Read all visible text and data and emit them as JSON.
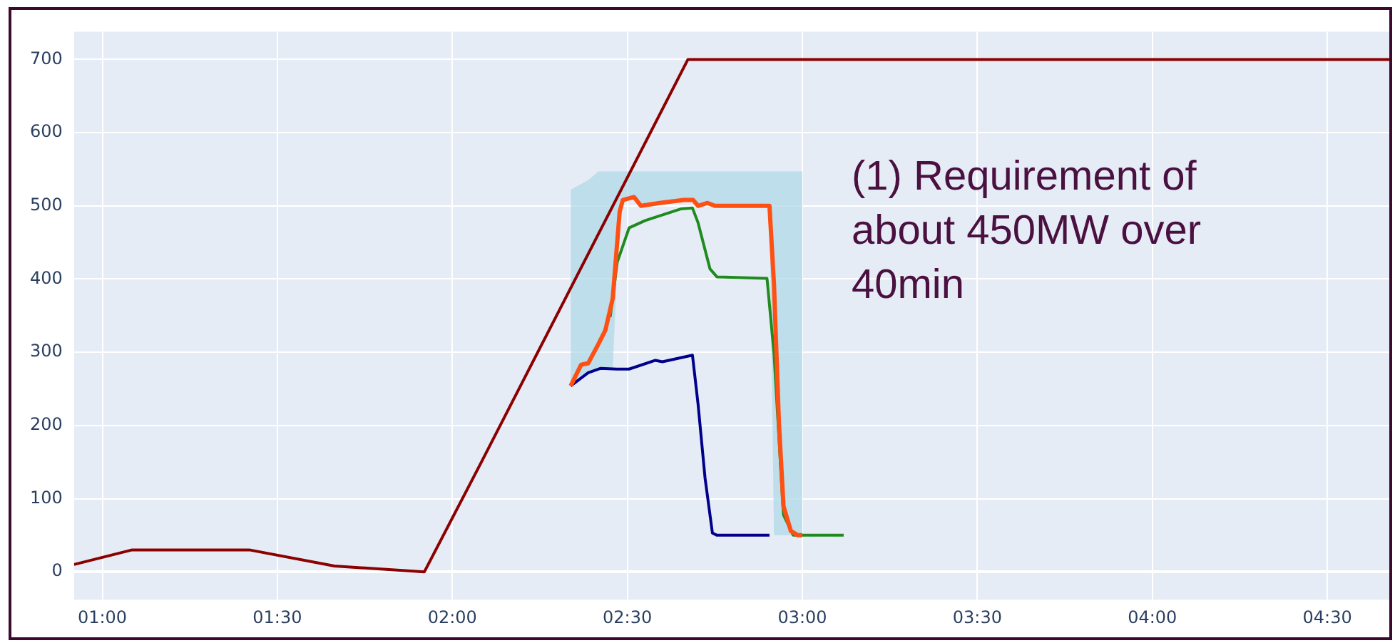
{
  "chart_data": {
    "type": "line",
    "xlim": [
      0.919,
      4.677
    ],
    "ylim": [
      -38,
      738
    ],
    "xticks": [
      {
        "value": 1,
        "label": "01:00"
      },
      {
        "value": 1.5,
        "label": "01:30"
      },
      {
        "value": 2,
        "label": "02:00"
      },
      {
        "value": 2.5,
        "label": "02:30"
      },
      {
        "value": 3,
        "label": "03:00"
      },
      {
        "value": 3.5,
        "label": "03:30"
      },
      {
        "value": 4,
        "label": "04:00"
      },
      {
        "value": 4.5,
        "label": "04:30"
      }
    ],
    "yticks": [
      0,
      100,
      200,
      300,
      400,
      500,
      600,
      700
    ],
    "grid": true,
    "legend": false,
    "marker": "none",
    "line_style": "solid",
    "annotations": [
      "(1) Requirement of about 450MW over 40min"
    ],
    "series": [
      {
        "type": "line",
        "color": "#8b0000",
        "x": [
          0.919,
          1.085,
          1.42,
          1.663,
          1.92,
          2.083,
          2.673,
          4.677
        ],
        "values": [
          10,
          30,
          30,
          8,
          0,
          150,
          700,
          700
        ]
      },
      {
        "type": "line",
        "color": "#00008b",
        "x": [
          2.338,
          2.388,
          2.424,
          2.47,
          2.505,
          2.58,
          2.6,
          2.686,
          2.702,
          2.722,
          2.743,
          2.756,
          2.906
        ],
        "values": [
          254,
          272,
          278,
          277,
          277,
          289,
          287,
          296,
          229,
          128,
          53,
          50,
          50
        ]
      },
      {
        "type": "line",
        "color": "#1f8b1f",
        "x": [
          2.451,
          2.471,
          2.505,
          2.551,
          2.654,
          2.686,
          2.702,
          2.736,
          2.756,
          2.899,
          2.919,
          2.946,
          2.974,
          3.118
        ],
        "values": [
          348,
          423,
          470,
          480,
          496,
          497,
          477,
          414,
          403,
          401,
          298,
          78,
          50,
          50
        ]
      },
      {
        "type": "line",
        "color": "#ff5014",
        "x": [
          2.338,
          2.368,
          2.388,
          2.417,
          2.437,
          2.458,
          2.478,
          2.487,
          2.519,
          2.539,
          2.592,
          2.661,
          2.688,
          2.702,
          2.729,
          2.75,
          2.906,
          2.919,
          2.933,
          2.946,
          2.967,
          2.987,
          3.0
        ],
        "values": [
          254,
          283,
          285,
          311,
          330,
          373,
          492,
          508,
          512,
          500,
          504,
          508,
          508,
          500,
          504,
          500,
          500,
          392,
          204,
          90,
          56,
          50,
          50
        ],
        "lower": [
          254,
          265,
          272,
          277,
          277,
          277,
          492,
          508,
          512,
          500,
          504,
          508,
          508,
          500,
          504,
          500,
          500,
          50,
          50,
          50,
          50,
          50,
          50
        ],
        "upper": [
          522,
          530,
          535,
          547,
          547,
          547,
          547,
          547,
          547,
          547,
          547,
          547,
          547,
          547,
          547,
          547,
          547,
          547,
          547,
          547,
          547,
          547,
          547
        ]
      }
    ]
  }
}
